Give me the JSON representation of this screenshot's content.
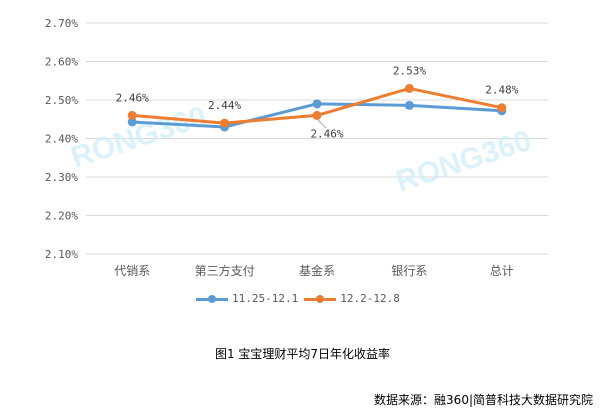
{
  "chart_data": {
    "type": "line",
    "title": "图1 宝宝理财平均7日年化收益率",
    "xlabel": "",
    "ylabel": "",
    "categories": [
      "代销系",
      "第三方支付",
      "基金系",
      "银行系",
      "总计"
    ],
    "series": [
      {
        "name": "11.25-12.1",
        "color": "#5B9BD5",
        "values": [
          2.443,
          2.43,
          2.49,
          2.486,
          2.472
        ]
      },
      {
        "name": "12.2-12.8",
        "color": "#ED7D31",
        "values": [
          2.46,
          2.44,
          2.46,
          2.53,
          2.48
        ]
      }
    ],
    "data_labels": {
      "series": "12.2-12.8",
      "labels": [
        "2.46%",
        "2.44%",
        "2.46%",
        "2.53%",
        "2.48%"
      ]
    },
    "y_ticks": [
      "2.70%",
      "2.60%",
      "2.50%",
      "2.40%",
      "2.30%",
      "2.20%",
      "2.10%"
    ],
    "ylim": [
      2.1,
      2.7
    ],
    "grid": true,
    "legend_position": "bottom"
  },
  "legend": {
    "items": [
      {
        "label": "11.25-12.1",
        "color": "#5B9BD5"
      },
      {
        "label": "12.2-12.8",
        "color": "#ED7D31"
      }
    ]
  },
  "caption": "图1 宝宝理财平均7日年化收益率",
  "source": "数据来源：融360|简普科技大数据研究院",
  "watermark": "RONG360"
}
